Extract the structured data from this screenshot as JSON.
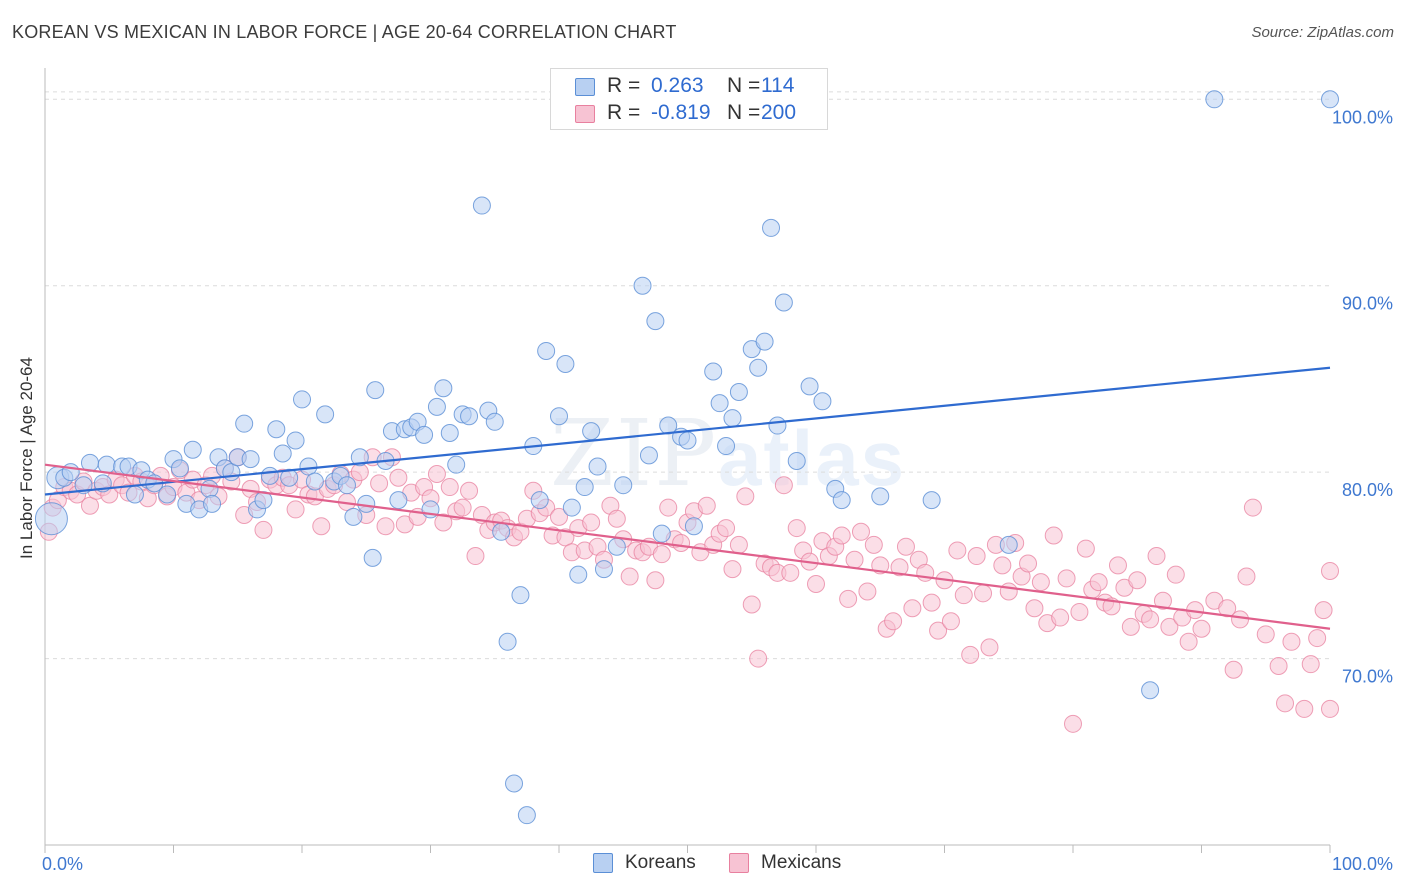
{
  "title": "KOREAN VS MEXICAN IN LABOR FORCE | AGE 20-64 CORRELATION CHART",
  "source": "Source: ZipAtlas.com",
  "watermark": {
    "zip": "ZIP",
    "atlas": "atlas"
  },
  "legend": {
    "r_label": "R =",
    "n_label": "N =",
    "series": [
      {
        "name": "Koreans",
        "r": "0.263",
        "n": "114",
        "fill": "#b8d0f2",
        "stroke": "#5b8fd6"
      },
      {
        "name": "Mexicans",
        "r": "-0.819",
        "n": "200",
        "fill": "#f7c3d3",
        "stroke": "#e8809f"
      }
    ]
  },
  "colors": {
    "blue_line": "#2f6bd0",
    "pink_line": "#e0608c",
    "tick_text": "#3f78d0",
    "grid": "#dcdcdc"
  },
  "chart_data": {
    "type": "scatter",
    "title": "KOREAN VS MEXICAN IN LABOR FORCE | AGE 20-64 CORRELATION CHART",
    "xlabel": "",
    "ylabel": "In Labor Force | Age 20-64",
    "xlim": [
      0,
      100
    ],
    "ylim": [
      60,
      102
    ],
    "x_tick_labels": [
      "0.0%",
      "100.0%"
    ],
    "y_ticks": [
      70,
      80,
      90,
      100
    ],
    "y_tick_labels": [
      "70.0%",
      "80.0%",
      "90.0%",
      "100.0%"
    ],
    "series": [
      {
        "name": "Koreans",
        "r": 0.263,
        "n": 114,
        "trend": {
          "x": [
            0,
            100
          ],
          "y": [
            78.8,
            85.6
          ]
        },
        "points": [
          [
            0.5,
            77.5
          ],
          [
            1,
            79.7
          ],
          [
            1.5,
            79.7
          ],
          [
            2,
            80.0
          ],
          [
            3,
            79.3
          ],
          [
            3.5,
            80.5
          ],
          [
            4.5,
            79.4
          ],
          [
            4.8,
            80.4
          ],
          [
            6,
            80.3
          ],
          [
            6.5,
            80.3
          ],
          [
            7,
            78.8
          ],
          [
            7.5,
            80.1
          ],
          [
            8,
            79.6
          ],
          [
            8.5,
            79.4
          ],
          [
            9.5,
            78.8
          ],
          [
            10,
            80.7
          ],
          [
            10.5,
            80.2
          ],
          [
            11,
            78.3
          ],
          [
            11.5,
            81.2
          ],
          [
            12,
            78.0
          ],
          [
            12.8,
            79.1
          ],
          [
            13,
            78.3
          ],
          [
            13.5,
            80.8
          ],
          [
            14,
            80.2
          ],
          [
            14.5,
            80.0
          ],
          [
            15,
            80.8
          ],
          [
            15.5,
            82.6
          ],
          [
            16,
            80.7
          ],
          [
            16.5,
            78.0
          ],
          [
            17,
            78.5
          ],
          [
            17.5,
            79.8
          ],
          [
            18,
            82.3
          ],
          [
            18.5,
            81.0
          ],
          [
            19,
            79.7
          ],
          [
            19.5,
            81.7
          ],
          [
            20,
            83.9
          ],
          [
            20.5,
            80.3
          ],
          [
            21,
            79.5
          ],
          [
            21.8,
            83.1
          ],
          [
            22.5,
            79.5
          ],
          [
            23,
            79.8
          ],
          [
            23.5,
            79.3
          ],
          [
            24,
            77.6
          ],
          [
            24.5,
            80.8
          ],
          [
            25,
            78.3
          ],
          [
            25.5,
            75.4
          ],
          [
            25.7,
            84.4
          ],
          [
            26.5,
            80.6
          ],
          [
            27,
            82.2
          ],
          [
            27.5,
            78.5
          ],
          [
            28,
            82.3
          ],
          [
            28.5,
            82.4
          ],
          [
            29,
            82.7
          ],
          [
            29.5,
            82.0
          ],
          [
            30,
            78.0
          ],
          [
            30.5,
            83.5
          ],
          [
            31,
            84.5
          ],
          [
            31.5,
            82.1
          ],
          [
            32,
            80.4
          ],
          [
            32.5,
            83.1
          ],
          [
            33,
            83.0
          ],
          [
            34,
            94.3
          ],
          [
            34.5,
            83.3
          ],
          [
            35,
            82.7
          ],
          [
            35.5,
            76.8
          ],
          [
            36,
            70.9
          ],
          [
            37,
            73.4
          ],
          [
            36.5,
            63.3
          ],
          [
            37.5,
            61.6
          ],
          [
            38,
            81.4
          ],
          [
            38.5,
            78.5
          ],
          [
            39,
            86.5
          ],
          [
            40,
            83.0
          ],
          [
            40.5,
            85.8
          ],
          [
            41,
            78.1
          ],
          [
            41.5,
            74.5
          ],
          [
            42,
            79.2
          ],
          [
            42.5,
            82.2
          ],
          [
            43,
            80.3
          ],
          [
            43.5,
            74.8
          ],
          [
            44.5,
            76.0
          ],
          [
            45,
            79.3
          ],
          [
            46.5,
            90.0
          ],
          [
            47,
            80.9
          ],
          [
            47.5,
            88.1
          ],
          [
            48,
            76.7
          ],
          [
            48.5,
            82.5
          ],
          [
            49.5,
            81.9
          ],
          [
            50,
            81.7
          ],
          [
            50.5,
            77.1
          ],
          [
            52,
            85.4
          ],
          [
            52.5,
            83.7
          ],
          [
            53,
            81.4
          ],
          [
            53.5,
            82.9
          ],
          [
            54,
            84.3
          ],
          [
            55,
            86.6
          ],
          [
            55.5,
            85.6
          ],
          [
            56,
            87.0
          ],
          [
            56.5,
            93.1
          ],
          [
            57,
            82.5
          ],
          [
            57.5,
            89.1
          ],
          [
            58.5,
            80.6
          ],
          [
            59.5,
            84.6
          ],
          [
            60.5,
            83.8
          ],
          [
            61.5,
            79.1
          ],
          [
            62,
            78.5
          ],
          [
            65,
            78.7
          ],
          [
            69,
            78.5
          ],
          [
            75,
            76.1
          ],
          [
            86,
            68.3
          ],
          [
            91,
            100.0
          ],
          [
            100,
            100.0
          ]
        ]
      },
      {
        "name": "Mexicans",
        "r": -0.819,
        "n": 200,
        "trend": {
          "x": [
            0,
            100
          ],
          "y": [
            80.4,
            71.6
          ]
        },
        "points": [
          [
            0.3,
            76.8
          ],
          [
            0.6,
            78.1
          ],
          [
            1,
            78.5
          ],
          [
            1.5,
            79.2
          ],
          [
            2,
            79.0
          ],
          [
            2.5,
            78.8
          ],
          [
            3,
            79.5
          ],
          [
            3.5,
            78.2
          ],
          [
            4,
            79.0
          ],
          [
            4.5,
            79.2
          ],
          [
            5,
            78.8
          ],
          [
            5.5,
            79.6
          ],
          [
            6,
            79.3
          ],
          [
            6.5,
            78.9
          ],
          [
            7,
            79.8
          ],
          [
            7.5,
            79.5
          ],
          [
            8,
            78.6
          ],
          [
            8.5,
            79.3
          ],
          [
            9,
            79.8
          ],
          [
            9.5,
            78.7
          ],
          [
            10,
            79.2
          ],
          [
            10.5,
            80.1
          ],
          [
            11,
            78.9
          ],
          [
            11.5,
            79.6
          ],
          [
            12,
            78.5
          ],
          [
            12.5,
            79.3
          ],
          [
            13,
            79.8
          ],
          [
            13.5,
            78.7
          ],
          [
            14,
            80.2
          ],
          [
            14.5,
            79.5
          ],
          [
            15,
            80.8
          ],
          [
            15.5,
            77.7
          ],
          [
            16,
            79.1
          ],
          [
            16.5,
            78.4
          ],
          [
            17,
            76.9
          ],
          [
            17.5,
            79.6
          ],
          [
            18,
            79.3
          ],
          [
            18.5,
            79.7
          ],
          [
            19,
            79.3
          ],
          [
            19.5,
            78.0
          ],
          [
            20,
            79.6
          ],
          [
            20.5,
            78.8
          ],
          [
            21,
            78.7
          ],
          [
            21.5,
            77.1
          ],
          [
            22,
            79.1
          ],
          [
            22.5,
            79.3
          ],
          [
            23,
            79.9
          ],
          [
            23.5,
            78.4
          ],
          [
            24,
            79.6
          ],
          [
            24.5,
            80.0
          ],
          [
            25,
            77.7
          ],
          [
            25.5,
            80.8
          ],
          [
            26,
            79.4
          ],
          [
            26.5,
            77.1
          ],
          [
            27,
            80.8
          ],
          [
            27.5,
            79.7
          ],
          [
            28,
            77.2
          ],
          [
            28.5,
            78.9
          ],
          [
            29,
            77.6
          ],
          [
            29.5,
            79.2
          ],
          [
            30,
            78.6
          ],
          [
            30.5,
            79.9
          ],
          [
            31,
            77.3
          ],
          [
            31.5,
            79.2
          ],
          [
            32,
            77.9
          ],
          [
            32.5,
            78.1
          ],
          [
            33,
            79.0
          ],
          [
            33.5,
            75.5
          ],
          [
            34,
            77.7
          ],
          [
            34.5,
            76.9
          ],
          [
            35,
            77.3
          ],
          [
            35.5,
            77.4
          ],
          [
            36,
            77.0
          ],
          [
            36.5,
            76.5
          ],
          [
            37,
            76.8
          ],
          [
            37.5,
            77.5
          ],
          [
            38,
            79.0
          ],
          [
            38.5,
            77.8
          ],
          [
            39,
            78.1
          ],
          [
            39.5,
            76.6
          ],
          [
            40,
            77.6
          ],
          [
            40.5,
            76.5
          ],
          [
            41,
            75.7
          ],
          [
            41.5,
            77.0
          ],
          [
            42,
            75.8
          ],
          [
            42.5,
            77.3
          ],
          [
            43,
            76.0
          ],
          [
            43.5,
            75.3
          ],
          [
            44,
            78.2
          ],
          [
            44.5,
            77.5
          ],
          [
            45,
            76.4
          ],
          [
            45.5,
            74.4
          ],
          [
            46,
            75.8
          ],
          [
            46.5,
            75.7
          ],
          [
            47,
            76.0
          ],
          [
            47.5,
            74.2
          ],
          [
            48,
            75.6
          ],
          [
            48.5,
            78.1
          ],
          [
            49,
            76.4
          ],
          [
            49.5,
            76.2
          ],
          [
            50,
            77.3
          ],
          [
            50.5,
            77.9
          ],
          [
            51,
            75.7
          ],
          [
            51.5,
            78.2
          ],
          [
            52,
            76.1
          ],
          [
            52.5,
            76.7
          ],
          [
            53,
            77.0
          ],
          [
            53.5,
            74.8
          ],
          [
            54,
            76.1
          ],
          [
            54.5,
            78.7
          ],
          [
            55,
            72.9
          ],
          [
            55.5,
            70.0
          ],
          [
            56,
            75.1
          ],
          [
            56.5,
            74.9
          ],
          [
            57,
            74.6
          ],
          [
            57.5,
            79.3
          ],
          [
            58,
            74.6
          ],
          [
            58.5,
            77.0
          ],
          [
            59,
            75.8
          ],
          [
            59.5,
            75.2
          ],
          [
            60,
            74.0
          ],
          [
            60.5,
            76.3
          ],
          [
            61,
            75.5
          ],
          [
            61.5,
            76.0
          ],
          [
            62,
            76.6
          ],
          [
            62.5,
            73.2
          ],
          [
            63,
            75.3
          ],
          [
            63.5,
            76.8
          ],
          [
            64,
            73.6
          ],
          [
            64.5,
            76.1
          ],
          [
            65,
            75.0
          ],
          [
            65.5,
            71.6
          ],
          [
            66,
            72.0
          ],
          [
            66.5,
            74.9
          ],
          [
            67,
            76.0
          ],
          [
            67.5,
            72.7
          ],
          [
            68,
            75.3
          ],
          [
            68.5,
            74.6
          ],
          [
            69,
            73.0
          ],
          [
            69.5,
            71.5
          ],
          [
            70,
            74.2
          ],
          [
            70.5,
            72.0
          ],
          [
            71,
            75.8
          ],
          [
            71.5,
            73.4
          ],
          [
            72,
            70.2
          ],
          [
            72.5,
            75.5
          ],
          [
            73,
            73.5
          ],
          [
            73.5,
            70.6
          ],
          [
            74,
            76.1
          ],
          [
            74.5,
            75.0
          ],
          [
            75,
            73.6
          ],
          [
            75.5,
            76.2
          ],
          [
            76,
            74.4
          ],
          [
            76.5,
            75.1
          ],
          [
            77,
            72.7
          ],
          [
            77.5,
            74.1
          ],
          [
            78,
            71.9
          ],
          [
            78.5,
            76.6
          ],
          [
            79,
            72.2
          ],
          [
            79.5,
            74.3
          ],
          [
            80,
            66.5
          ],
          [
            80.5,
            72.5
          ],
          [
            81,
            75.9
          ],
          [
            81.5,
            73.7
          ],
          [
            82,
            74.1
          ],
          [
            82.5,
            73.0
          ],
          [
            83,
            72.8
          ],
          [
            83.5,
            75.0
          ],
          [
            84,
            73.8
          ],
          [
            84.5,
            71.7
          ],
          [
            85,
            74.2
          ],
          [
            85.5,
            72.4
          ],
          [
            86,
            72.1
          ],
          [
            86.5,
            75.5
          ],
          [
            87,
            73.1
          ],
          [
            87.5,
            71.7
          ],
          [
            88,
            74.5
          ],
          [
            88.5,
            72.2
          ],
          [
            89,
            70.9
          ],
          [
            89.5,
            72.6
          ],
          [
            90,
            71.6
          ],
          [
            91,
            73.1
          ],
          [
            92,
            72.7
          ],
          [
            92.5,
            69.4
          ],
          [
            93,
            72.1
          ],
          [
            93.5,
            74.4
          ],
          [
            94,
            78.1
          ],
          [
            95,
            71.3
          ],
          [
            96,
            69.6
          ],
          [
            96.5,
            67.6
          ],
          [
            97,
            70.9
          ],
          [
            98,
            67.3
          ],
          [
            98.5,
            69.7
          ],
          [
            99,
            71.1
          ],
          [
            99.5,
            72.6
          ],
          [
            100,
            74.7
          ],
          [
            100,
            67.3
          ]
        ]
      }
    ]
  }
}
